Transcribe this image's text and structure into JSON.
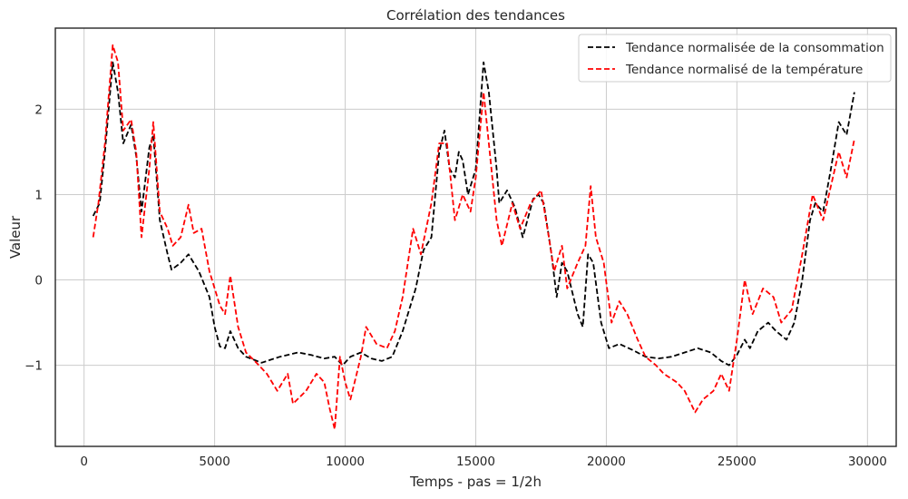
{
  "chart_data": {
    "type": "line",
    "title": "Corrélation des tendances",
    "xlabel": "Temps -  pas = 1/2h",
    "ylabel": "Valeur",
    "xlim": [
      -1100,
      31100
    ],
    "ylim": [
      -1.95,
      2.95
    ],
    "xticks": [
      0,
      5000,
      10000,
      15000,
      20000,
      25000,
      30000
    ],
    "xtick_labels": [
      "0",
      "5000",
      "10000",
      "15000",
      "20000",
      "25000",
      "30000"
    ],
    "yticks": [
      -1,
      0,
      1,
      2
    ],
    "ytick_labels": [
      "−1",
      "0",
      "1",
      "2"
    ],
    "grid": true,
    "legend_position": "top-right",
    "series": [
      {
        "name": "Tendance normalisée de la consommation",
        "color": "#000000",
        "dash": "dashed",
        "points": [
          [
            350,
            0.75
          ],
          [
            600,
            0.9
          ],
          [
            800,
            1.5
          ],
          [
            1100,
            2.55
          ],
          [
            1300,
            2.2
          ],
          [
            1500,
            1.6
          ],
          [
            1800,
            1.82
          ],
          [
            2000,
            1.45
          ],
          [
            2200,
            0.8
          ],
          [
            2500,
            1.55
          ],
          [
            2650,
            1.7
          ],
          [
            2900,
            0.7
          ],
          [
            3200,
            0.3
          ],
          [
            3350,
            0.12
          ],
          [
            3700,
            0.2
          ],
          [
            4000,
            0.3
          ],
          [
            4400,
            0.1
          ],
          [
            4800,
            -0.2
          ],
          [
            5000,
            -0.55
          ],
          [
            5200,
            -0.78
          ],
          [
            5400,
            -0.8
          ],
          [
            5600,
            -0.6
          ],
          [
            5900,
            -0.8
          ],
          [
            6200,
            -0.9
          ],
          [
            6800,
            -0.97
          ],
          [
            7500,
            -0.9
          ],
          [
            8200,
            -0.85
          ],
          [
            8700,
            -0.88
          ],
          [
            9200,
            -0.92
          ],
          [
            9600,
            -0.9
          ],
          [
            9900,
            -1.0
          ],
          [
            10200,
            -0.9
          ],
          [
            10600,
            -0.85
          ],
          [
            11000,
            -0.92
          ],
          [
            11400,
            -0.95
          ],
          [
            11800,
            -0.9
          ],
          [
            12200,
            -0.6
          ],
          [
            12700,
            -0.1
          ],
          [
            13000,
            0.35
          ],
          [
            13300,
            0.5
          ],
          [
            13600,
            1.5
          ],
          [
            13800,
            1.75
          ],
          [
            14000,
            1.3
          ],
          [
            14200,
            1.2
          ],
          [
            14350,
            1.5
          ],
          [
            14500,
            1.4
          ],
          [
            14700,
            1.0
          ],
          [
            15000,
            1.3
          ],
          [
            15300,
            2.55
          ],
          [
            15500,
            2.2
          ],
          [
            15800,
            1.3
          ],
          [
            15900,
            0.9
          ],
          [
            16200,
            1.05
          ],
          [
            16500,
            0.85
          ],
          [
            16800,
            0.5
          ],
          [
            17200,
            0.95
          ],
          [
            17400,
            1.0
          ],
          [
            17600,
            0.9
          ],
          [
            17900,
            0.3
          ],
          [
            18100,
            -0.2
          ],
          [
            18300,
            0.2
          ],
          [
            18500,
            0.1
          ],
          [
            18900,
            -0.4
          ],
          [
            19100,
            -0.55
          ],
          [
            19300,
            0.3
          ],
          [
            19500,
            0.2
          ],
          [
            19800,
            -0.5
          ],
          [
            20100,
            -0.8
          ],
          [
            20500,
            -0.75
          ],
          [
            21000,
            -0.82
          ],
          [
            21500,
            -0.9
          ],
          [
            22000,
            -0.92
          ],
          [
            22500,
            -0.9
          ],
          [
            23000,
            -0.85
          ],
          [
            23500,
            -0.8
          ],
          [
            24000,
            -0.85
          ],
          [
            24400,
            -0.95
          ],
          [
            24700,
            -1.0
          ],
          [
            25000,
            -0.88
          ],
          [
            25300,
            -0.7
          ],
          [
            25500,
            -0.8
          ],
          [
            25800,
            -0.6
          ],
          [
            26200,
            -0.5
          ],
          [
            26500,
            -0.6
          ],
          [
            26900,
            -0.7
          ],
          [
            27200,
            -0.5
          ],
          [
            27500,
            0.0
          ],
          [
            27800,
            0.7
          ],
          [
            28000,
            0.9
          ],
          [
            28300,
            0.8
          ],
          [
            28600,
            1.3
          ],
          [
            28900,
            1.85
          ],
          [
            29200,
            1.7
          ],
          [
            29500,
            2.2
          ]
        ]
      },
      {
        "name": "Tendance normalisé de la température",
        "color": "#ff0000",
        "dash": "dashed",
        "points": [
          [
            350,
            0.5
          ],
          [
            550,
            0.9
          ],
          [
            800,
            1.6
          ],
          [
            1100,
            2.75
          ],
          [
            1300,
            2.55
          ],
          [
            1500,
            1.75
          ],
          [
            1800,
            1.88
          ],
          [
            2000,
            1.5
          ],
          [
            2200,
            0.5
          ],
          [
            2500,
            1.3
          ],
          [
            2650,
            1.85
          ],
          [
            2900,
            0.8
          ],
          [
            3200,
            0.6
          ],
          [
            3400,
            0.4
          ],
          [
            3700,
            0.5
          ],
          [
            4000,
            0.88
          ],
          [
            4200,
            0.55
          ],
          [
            4500,
            0.6
          ],
          [
            4800,
            0.1
          ],
          [
            5200,
            -0.3
          ],
          [
            5400,
            -0.4
          ],
          [
            5600,
            0.05
          ],
          [
            5900,
            -0.55
          ],
          [
            6200,
            -0.85
          ],
          [
            6600,
            -0.97
          ],
          [
            7000,
            -1.1
          ],
          [
            7400,
            -1.3
          ],
          [
            7800,
            -1.1
          ],
          [
            8000,
            -1.45
          ],
          [
            8500,
            -1.3
          ],
          [
            8900,
            -1.1
          ],
          [
            9200,
            -1.2
          ],
          [
            9400,
            -1.5
          ],
          [
            9600,
            -1.75
          ],
          [
            9800,
            -0.9
          ],
          [
            10000,
            -1.2
          ],
          [
            10200,
            -1.4
          ],
          [
            10600,
            -0.9
          ],
          [
            10800,
            -0.55
          ],
          [
            11200,
            -0.75
          ],
          [
            11600,
            -0.8
          ],
          [
            11900,
            -0.6
          ],
          [
            12200,
            -0.2
          ],
          [
            12600,
            0.6
          ],
          [
            12900,
            0.3
          ],
          [
            13300,
            0.9
          ],
          [
            13600,
            1.6
          ],
          [
            13900,
            1.6
          ],
          [
            14200,
            0.7
          ],
          [
            14500,
            1.0
          ],
          [
            14800,
            0.8
          ],
          [
            15000,
            1.2
          ],
          [
            15300,
            2.2
          ],
          [
            15500,
            1.6
          ],
          [
            15800,
            0.7
          ],
          [
            16000,
            0.4
          ],
          [
            16400,
            0.9
          ],
          [
            16700,
            0.6
          ],
          [
            17100,
            0.9
          ],
          [
            17500,
            1.05
          ],
          [
            17800,
            0.5
          ],
          [
            18000,
            0.1
          ],
          [
            18300,
            0.4
          ],
          [
            18500,
            -0.1
          ],
          [
            18900,
            0.2
          ],
          [
            19200,
            0.4
          ],
          [
            19400,
            1.1
          ],
          [
            19600,
            0.5
          ],
          [
            19900,
            0.2
          ],
          [
            20200,
            -0.5
          ],
          [
            20500,
            -0.25
          ],
          [
            20800,
            -0.4
          ],
          [
            21200,
            -0.7
          ],
          [
            21500,
            -0.9
          ],
          [
            21900,
            -1.0
          ],
          [
            22200,
            -1.1
          ],
          [
            22700,
            -1.2
          ],
          [
            23000,
            -1.3
          ],
          [
            23400,
            -1.55
          ],
          [
            23700,
            -1.4
          ],
          [
            24100,
            -1.3
          ],
          [
            24400,
            -1.1
          ],
          [
            24700,
            -1.3
          ],
          [
            25000,
            -0.7
          ],
          [
            25300,
            0.0
          ],
          [
            25600,
            -0.4
          ],
          [
            26000,
            -0.1
          ],
          [
            26400,
            -0.2
          ],
          [
            26700,
            -0.5
          ],
          [
            27100,
            -0.35
          ],
          [
            27500,
            0.3
          ],
          [
            27900,
            1.0
          ],
          [
            28300,
            0.7
          ],
          [
            28600,
            1.1
          ],
          [
            28900,
            1.5
          ],
          [
            29200,
            1.2
          ],
          [
            29500,
            1.65
          ]
        ]
      }
    ]
  }
}
